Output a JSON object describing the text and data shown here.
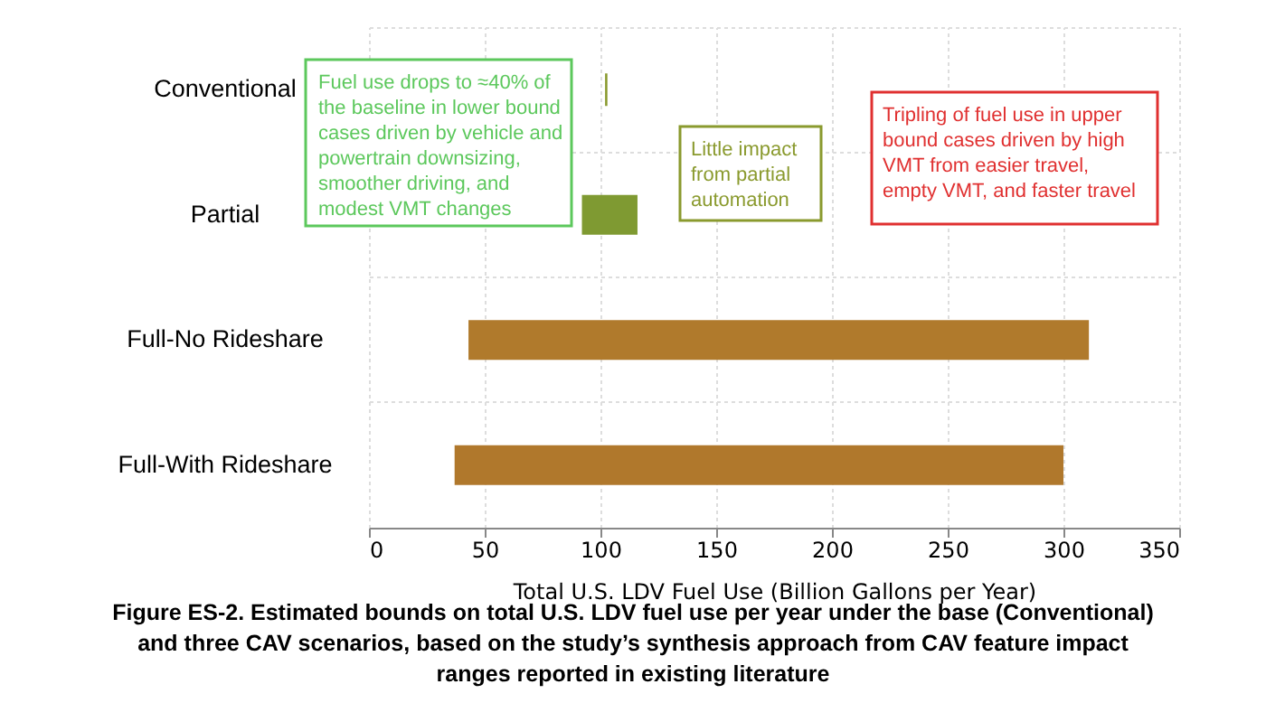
{
  "chart_data": {
    "type": "bar",
    "orientation": "horizontal",
    "categories": [
      "Conventional",
      "Partial",
      "Full-No Rideshare",
      "Full-With Rideshare"
    ],
    "base": [
      102,
      92,
      43,
      37
    ],
    "values": [
      1,
      24,
      268,
      263
    ],
    "colors": [
      "#8a9a2e",
      "#7f9a32",
      "#b07a2c",
      "#b0782c"
    ],
    "xlabel": "Total U.S. LDV Fuel Use (Billion Gallons per Year)",
    "xlim": [
      0,
      350
    ],
    "xticks": [
      0,
      50,
      100,
      150,
      200,
      250,
      300,
      350
    ],
    "grid": true,
    "annotations": [
      "Fuel use drops to ≈40% of\nthe baseline in lower bound\ncases driven by vehicle and\npowertrain downsizing,\nsmoother driving, and\nmodest VMT changes",
      "Little impact\nfrom partial\nautomation",
      "Tripling of fuel use in upper\nbound cases driven by high\nVMT from easier travel,\nempty VMT, and faster travel",
      "Figure ES-2. Estimated bounds on total U.S. LDV fuel use per year under the base (Conventional)\nand three CAV scenarios, based on the study’s synthesis approach from CAV feature impact\nranges reported in existing literature"
    ]
  }
}
